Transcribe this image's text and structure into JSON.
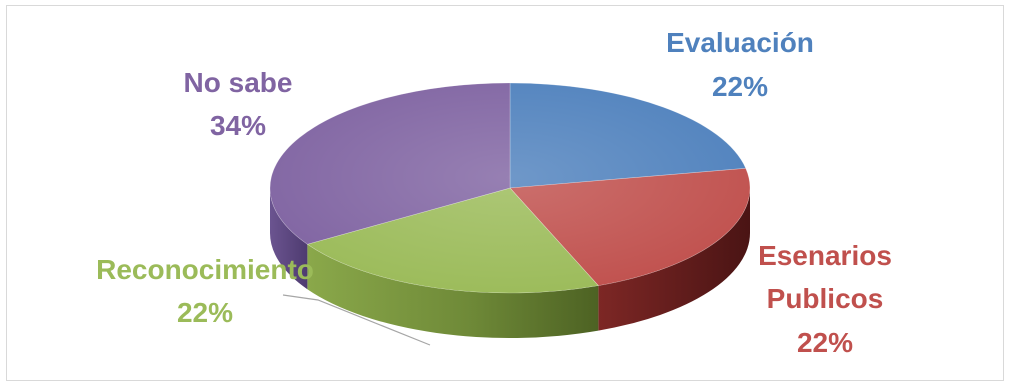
{
  "chart_data": {
    "type": "pie",
    "style": "3d",
    "labels": [
      "Evaluación",
      "Esenarios Publicos",
      "Reconocimiento",
      "No sabe"
    ],
    "values": [
      22,
      22,
      22,
      34
    ],
    "display": [
      "22%",
      "22%",
      "22%",
      "34%"
    ],
    "colors": [
      "#4F81BD",
      "#C0504D",
      "#9BBB59",
      "#8064A2"
    ],
    "legend": "none"
  }
}
